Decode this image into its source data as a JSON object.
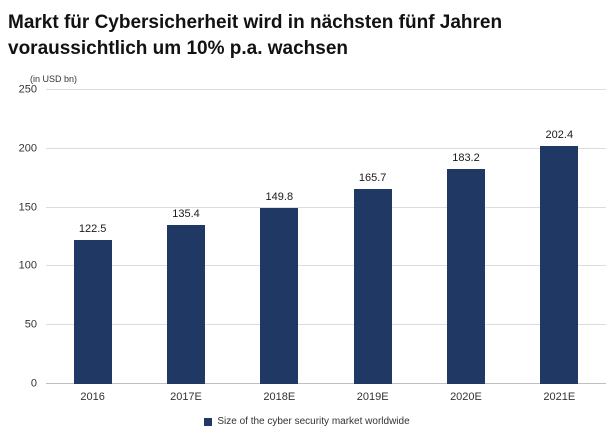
{
  "title": "Markt für Cybersicherheit wird in nächsten fünf Jahren voraussichtlich um 10% p.a. wachsen",
  "chart_data": {
    "type": "bar",
    "title": "Markt für Cybersicherheit wird in nächsten fünf Jahren voraussichtlich um 10% p.a. wachsen",
    "unit_label": "(in USD bn)",
    "categories": [
      "2016",
      "2017E",
      "2018E",
      "2019E",
      "2020E",
      "2021E"
    ],
    "values": [
      122.5,
      135.4,
      149.8,
      165.7,
      183.2,
      202.4
    ],
    "ylim": [
      0,
      250
    ],
    "ytick_step": 50,
    "grid": true,
    "legend": "Size of the cyber security market worldwide",
    "legend_position": "bottom",
    "bar_color": "#1F3864"
  }
}
